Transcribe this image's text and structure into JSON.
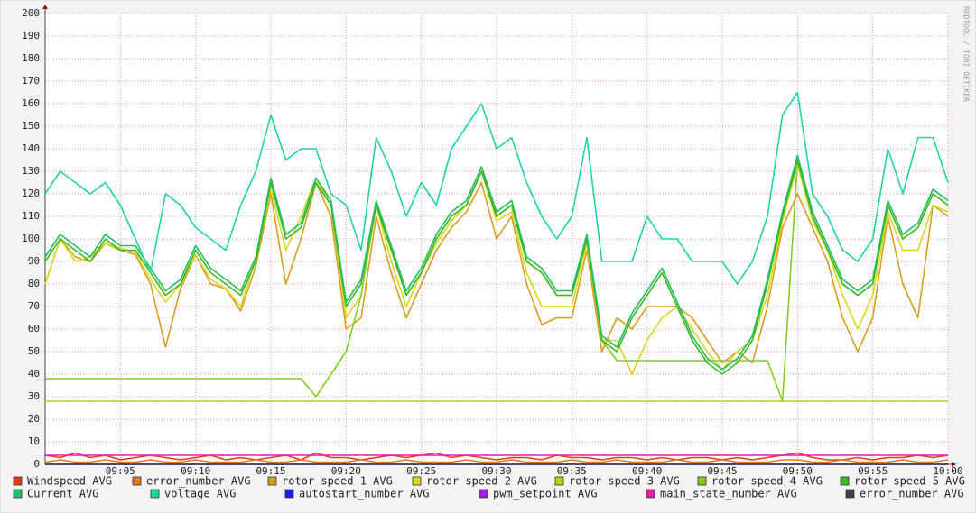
{
  "chart_data": {
    "type": "line",
    "watermark": "RRDTOOL / TOBI OETIKER",
    "x": [
      "09:00",
      "09:01",
      "09:02",
      "09:03",
      "09:04",
      "09:05",
      "09:06",
      "09:07",
      "09:08",
      "09:09",
      "09:10",
      "09:11",
      "09:12",
      "09:13",
      "09:14",
      "09:15",
      "09:16",
      "09:17",
      "09:18",
      "09:19",
      "09:20",
      "09:21",
      "09:22",
      "09:23",
      "09:24",
      "09:25",
      "09:26",
      "09:27",
      "09:28",
      "09:29",
      "09:30",
      "09:31",
      "09:32",
      "09:33",
      "09:34",
      "09:35",
      "09:36",
      "09:37",
      "09:38",
      "09:39",
      "09:40",
      "09:41",
      "09:42",
      "09:43",
      "09:44",
      "09:45",
      "09:46",
      "09:47",
      "09:48",
      "09:49",
      "09:50",
      "09:51",
      "09:52",
      "09:53",
      "09:54",
      "09:55",
      "09:56",
      "09:57",
      "09:58",
      "09:59",
      "10:00"
    ],
    "xlim": [
      "09:00",
      "10:00"
    ],
    "xticks": [
      "09:05",
      "09:10",
      "09:15",
      "09:20",
      "09:25",
      "09:30",
      "09:35",
      "09:40",
      "09:45",
      "09:50",
      "09:55",
      "10:00"
    ],
    "ylim": [
      0,
      200
    ],
    "yticks": [
      0,
      10,
      20,
      30,
      40,
      50,
      60,
      70,
      80,
      90,
      100,
      110,
      120,
      130,
      140,
      150,
      160,
      170,
      180,
      190,
      200
    ],
    "grid": true,
    "series": [
      {
        "name": "Windspeed AVG",
        "color": "#e0401a",
        "values": [
          4,
          3,
          5,
          3,
          4,
          2,
          3,
          4,
          3,
          2,
          3,
          4,
          2,
          3,
          2,
          3,
          4,
          2,
          5,
          3,
          3,
          2,
          3,
          4,
          3,
          4,
          5,
          3,
          4,
          3,
          2,
          3,
          3,
          2,
          4,
          3,
          3,
          2,
          3,
          3,
          2,
          3,
          2,
          3,
          3,
          2,
          3,
          2,
          3,
          4,
          5,
          3,
          2,
          2,
          3,
          2,
          3,
          3,
          4,
          3,
          4
        ]
      },
      {
        "name": "error_number AVG",
        "color": "#e8781e",
        "values": [
          1,
          2,
          1,
          1,
          2,
          1,
          1,
          2,
          1,
          1,
          2,
          1,
          1,
          1,
          2,
          1,
          1,
          2,
          1,
          1,
          1,
          2,
          1,
          1,
          2,
          1,
          1,
          1,
          2,
          1,
          1,
          2,
          1,
          1,
          1,
          2,
          1,
          1,
          2,
          1,
          1,
          1,
          2,
          1,
          1,
          2,
          1,
          1,
          1,
          2,
          2,
          1,
          1,
          2,
          1,
          1,
          1,
          2,
          1,
          1,
          2
        ]
      },
      {
        "name": "rotor speed 1 AVG",
        "color": "#d4a020",
        "values": [
          80,
          100,
          92,
          90,
          98,
          95,
          93,
          80,
          52,
          78,
          93,
          80,
          78,
          68,
          88,
          120,
          80,
          100,
          125,
          110,
          60,
          65,
          110,
          85,
          65,
          80,
          95,
          105,
          112,
          125,
          100,
          110,
          80,
          62,
          65,
          65,
          95,
          50,
          65,
          60,
          70,
          70,
          70,
          65,
          55,
          45,
          50,
          45,
          70,
          105,
          120,
          105,
          90,
          65,
          50,
          65,
          110,
          80,
          65,
          115,
          110
        ]
      },
      {
        "name": "rotor speed 2 AVG",
        "color": "#d8d820",
        "values": [
          80,
          100,
          90,
          92,
          98,
          96,
          94,
          82,
          72,
          80,
          93,
          82,
          78,
          70,
          92,
          122,
          95,
          110,
          127,
          115,
          65,
          75,
          115,
          90,
          70,
          85,
          98,
          108,
          115,
          130,
          108,
          112,
          85,
          70,
          70,
          70,
          98,
          55,
          55,
          40,
          55,
          65,
          70,
          60,
          50,
          42,
          50,
          55,
          75,
          108,
          133,
          108,
          95,
          75,
          60,
          75,
          112,
          95,
          95,
          115,
          112
        ]
      },
      {
        "name": "rotor speed 3 AVG",
        "color": "#b4d41c",
        "values": [
          28,
          28,
          28,
          28,
          28,
          28,
          28,
          28,
          28,
          28,
          28,
          28,
          28,
          28,
          28,
          28,
          28,
          28,
          28,
          28,
          28,
          28,
          28,
          28,
          28,
          28,
          28,
          28,
          28,
          28,
          28,
          28,
          28,
          28,
          28,
          28,
          28,
          28,
          28,
          28,
          28,
          28,
          28,
          28,
          28,
          28,
          28,
          28,
          28,
          28,
          28,
          28,
          28,
          28,
          28,
          28,
          28,
          28,
          28,
          28,
          28
        ]
      },
      {
        "name": "rotor speed 4 AVG",
        "color": "#84cc20",
        "values": [
          38,
          38,
          38,
          38,
          38,
          38,
          38,
          38,
          38,
          38,
          38,
          38,
          38,
          38,
          38,
          38,
          38,
          38,
          30,
          40,
          50,
          75,
          115,
          95,
          75,
          85,
          100,
          110,
          115,
          130,
          110,
          115,
          90,
          85,
          75,
          75,
          100,
          55,
          46,
          46,
          46,
          46,
          46,
          46,
          46,
          46,
          46,
          46,
          46,
          28,
          135,
          110,
          95,
          80,
          75,
          80,
          115,
          100,
          105,
          120,
          115
        ]
      },
      {
        "name": "rotor speed 5 AVG",
        "color": "#40b820",
        "values": [
          90,
          100,
          95,
          90,
          100,
          95,
          95,
          85,
          75,
          80,
          95,
          85,
          80,
          75,
          90,
          125,
          100,
          105,
          125,
          115,
          70,
          80,
          115,
          95,
          75,
          85,
          100,
          110,
          115,
          130,
          110,
          115,
          90,
          85,
          75,
          75,
          100,
          55,
          50,
          65,
          75,
          85,
          70,
          55,
          45,
          40,
          45,
          55,
          80,
          110,
          135,
          110,
          95,
          80,
          75,
          80,
          115,
          100,
          105,
          120,
          115
        ]
      },
      {
        "name": "Current AVG",
        "color": "#20c060",
        "values": [
          92,
          102,
          97,
          92,
          102,
          97,
          97,
          87,
          77,
          82,
          97,
          87,
          82,
          77,
          92,
          127,
          102,
          107,
          127,
          117,
          72,
          82,
          117,
          97,
          77,
          87,
          102,
          112,
          117,
          132,
          112,
          117,
          92,
          87,
          77,
          77,
          102,
          57,
          52,
          67,
          77,
          87,
          72,
          57,
          47,
          42,
          47,
          57,
          82,
          112,
          137,
          112,
          97,
          82,
          77,
          82,
          117,
          102,
          107,
          122,
          117
        ]
      },
      {
        "name": "voltage AVG",
        "color": "#20d4a4",
        "values": [
          120,
          130,
          125,
          120,
          125,
          115,
          100,
          85,
          120,
          115,
          105,
          100,
          95,
          115,
          130,
          155,
          135,
          140,
          140,
          120,
          115,
          95,
          145,
          130,
          110,
          125,
          115,
          140,
          150,
          160,
          140,
          145,
          125,
          110,
          100,
          110,
          145,
          90,
          90,
          90,
          110,
          100,
          100,
          90,
          90,
          90,
          80,
          90,
          110,
          155,
          165,
          120,
          110,
          95,
          90,
          100,
          140,
          120,
          145,
          145,
          125
        ]
      },
      {
        "name": "autostart_number AVG",
        "color": "#2020e0",
        "values": [
          0,
          0,
          0,
          0,
          0,
          0,
          0,
          0,
          0,
          0,
          0,
          0,
          0,
          0,
          0,
          0,
          0,
          0,
          0,
          0,
          0,
          0,
          0,
          0,
          0,
          0,
          0,
          0,
          0,
          0,
          0,
          0,
          0,
          0,
          0,
          0,
          0,
          0,
          0,
          0,
          0,
          0,
          0,
          0,
          0,
          0,
          0,
          0,
          0,
          0,
          0,
          0,
          0,
          0,
          0,
          0,
          0,
          0,
          0,
          0,
          0
        ]
      },
      {
        "name": "pwm_setpoint AVG",
        "color": "#a020e0",
        "values": [
          0,
          0,
          0,
          0,
          0,
          0,
          0,
          0,
          0,
          0,
          0,
          0,
          0,
          0,
          0,
          0,
          0,
          0,
          0,
          0,
          0,
          0,
          0,
          0,
          0,
          0,
          0,
          0,
          0,
          0,
          0,
          0,
          0,
          0,
          0,
          0,
          0,
          0,
          0,
          0,
          0,
          0,
          0,
          0,
          0,
          0,
          0,
          0,
          0,
          0,
          0,
          0,
          0,
          0,
          0,
          0,
          0,
          0,
          0,
          0,
          0
        ]
      },
      {
        "name": "main_state_number AVG",
        "color": "#e020a0",
        "values": [
          4,
          4,
          4,
          4,
          4,
          4,
          4,
          4,
          4,
          4,
          4,
          4,
          4,
          4,
          4,
          4,
          4,
          4,
          4,
          4,
          4,
          4,
          4,
          4,
          4,
          4,
          4,
          4,
          4,
          4,
          4,
          4,
          4,
          4,
          4,
          4,
          4,
          4,
          4,
          4,
          4,
          4,
          4,
          4,
          4,
          4,
          4,
          4,
          4,
          4,
          4,
          4,
          4,
          4,
          4,
          4,
          4,
          4,
          4,
          4,
          4
        ]
      },
      {
        "name": "error_number AVG",
        "color": "#404040",
        "values": [
          0,
          0,
          0,
          0,
          0,
          0,
          0,
          0,
          0,
          0,
          0,
          0,
          0,
          0,
          0,
          0,
          0,
          0,
          0,
          0,
          0,
          0,
          0,
          0,
          0,
          0,
          0,
          0,
          0,
          0,
          0,
          0,
          0,
          0,
          0,
          0,
          0,
          0,
          0,
          0,
          0,
          0,
          0,
          0,
          0,
          0,
          0,
          0,
          0,
          0,
          0,
          0,
          0,
          0,
          0,
          0,
          0,
          0,
          0,
          0,
          0
        ]
      }
    ]
  }
}
